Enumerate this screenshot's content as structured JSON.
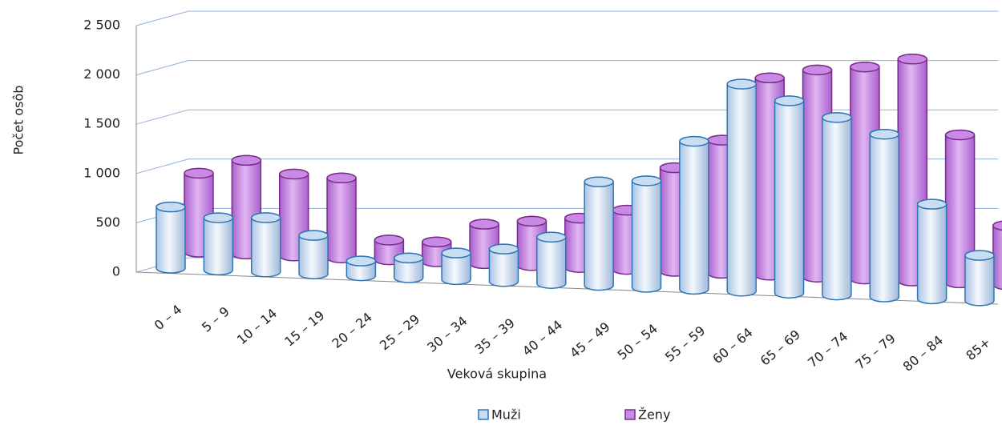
{
  "chart_data": {
    "type": "bar3d",
    "x_label": "Veková skupina",
    "y_label": "Počet osôb",
    "categories": [
      "0 – 4",
      "5 – 9",
      "10 – 14",
      "15 – 19",
      "20 – 24",
      "25 – 29",
      "30 – 34",
      "35 – 39",
      "40 – 44",
      "45 – 49",
      "50 – 54",
      "55 – 59",
      "60 – 64",
      "65 – 69",
      "70 – 74",
      "75 – 79",
      "80 – 84",
      "85+"
    ],
    "series": [
      {
        "name": "Muži",
        "color": "#c9ddf2",
        "stroke": "#2e75b6",
        "values": [
          620,
          530,
          550,
          390,
          150,
          200,
          270,
          330,
          470,
          1050,
          1080,
          1500,
          2100,
          1950,
          1800,
          1650,
          960,
          460
        ]
      },
      {
        "name": "Ženy",
        "color": "#c98ae6",
        "stroke": "#7a2a8a",
        "values": [
          800,
          950,
          830,
          810,
          200,
          200,
          400,
          450,
          500,
          600,
          1050,
          1350,
          2000,
          2100,
          2150,
          2250,
          1500,
          600
        ]
      }
    ],
    "ylim": [
      0,
      2500
    ],
    "yticks": [
      0,
      500,
      {
        "value": 1000,
        "label": "1 000"
      },
      {
        "value": 1500,
        "label": "1 500"
      },
      {
        "value": 2000,
        "label": "2 000"
      },
      {
        "value": 2500,
        "label": "2 500"
      }
    ],
    "grid": true
  }
}
